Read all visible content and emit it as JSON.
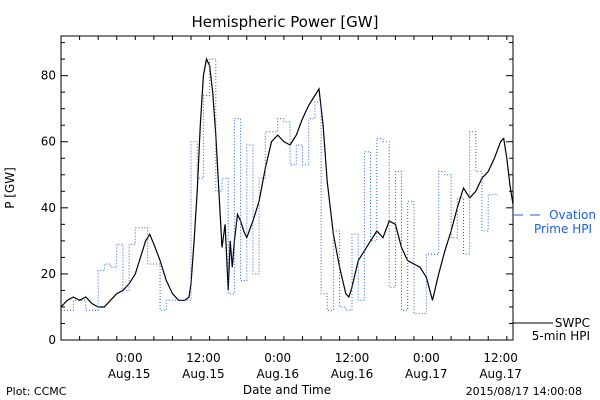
{
  "chart_data": {
    "type": "line",
    "title": "Hemispheric Power [GW]",
    "xlabel": "Date and Time",
    "ylabel": "P [GW]",
    "xlim": [
      "2015-08-14T13:00",
      "2015-08-17T14:00"
    ],
    "ylim": [
      0,
      92
    ],
    "grid": false,
    "legend_position": "right",
    "x_ticks": [
      {
        "x": "2015-08-15T00:00",
        "time": "0:00",
        "date": "Aug.15"
      },
      {
        "x": "2015-08-15T12:00",
        "time": "12:00",
        "date": "Aug.15"
      },
      {
        "x": "2015-08-16T00:00",
        "time": "0:00",
        "date": "Aug.16"
      },
      {
        "x": "2015-08-16T12:00",
        "time": "12:00",
        "date": "Aug.16"
      },
      {
        "x": "2015-08-17T00:00",
        "time": "0:00",
        "date": "Aug.17"
      },
      {
        "x": "2015-08-17T12:00",
        "time": "12:00",
        "date": "Aug.17"
      }
    ],
    "y_ticks": [
      0,
      20,
      40,
      60,
      80
    ],
    "series": [
      {
        "name": "SWPC 5-min HPI",
        "color": "#000000",
        "style": "solid",
        "points": [
          [
            "2015-08-14T13:00",
            10
          ],
          [
            "2015-08-14T14:00",
            12
          ],
          [
            "2015-08-14T15:00",
            13
          ],
          [
            "2015-08-14T16:00",
            12
          ],
          [
            "2015-08-14T17:00",
            13
          ],
          [
            "2015-08-14T18:00",
            11
          ],
          [
            "2015-08-14T19:00",
            10
          ],
          [
            "2015-08-14T20:00",
            10
          ],
          [
            "2015-08-14T21:00",
            12
          ],
          [
            "2015-08-14T22:00",
            14
          ],
          [
            "2015-08-14T23:00",
            15
          ],
          [
            "2015-08-15T00:00",
            17
          ],
          [
            "2015-08-15T01:00",
            20
          ],
          [
            "2015-08-15T02:00",
            26
          ],
          [
            "2015-08-15T02:40",
            30
          ],
          [
            "2015-08-15T03:20",
            32
          ],
          [
            "2015-08-15T04:00",
            29
          ],
          [
            "2015-08-15T05:00",
            24
          ],
          [
            "2015-08-15T06:00",
            18
          ],
          [
            "2015-08-15T07:00",
            14
          ],
          [
            "2015-08-15T08:00",
            12
          ],
          [
            "2015-08-15T09:00",
            12
          ],
          [
            "2015-08-15T09:40",
            13
          ],
          [
            "2015-08-15T10:00",
            17
          ],
          [
            "2015-08-15T10:30",
            30
          ],
          [
            "2015-08-15T11:00",
            45
          ],
          [
            "2015-08-15T11:30",
            65
          ],
          [
            "2015-08-15T12:00",
            80
          ],
          [
            "2015-08-15T12:30",
            85
          ],
          [
            "2015-08-15T13:00",
            83
          ],
          [
            "2015-08-15T13:30",
            75
          ],
          [
            "2015-08-15T14:00",
            62
          ],
          [
            "2015-08-15T14:30",
            45
          ],
          [
            "2015-08-15T15:00",
            28
          ],
          [
            "2015-08-15T15:30",
            35
          ],
          [
            "2015-08-15T16:00",
            15
          ],
          [
            "2015-08-15T16:20",
            30
          ],
          [
            "2015-08-15T16:40",
            22
          ],
          [
            "2015-08-15T17:00",
            30
          ],
          [
            "2015-08-15T17:30",
            38
          ],
          [
            "2015-08-15T18:00",
            36
          ],
          [
            "2015-08-15T18:30",
            33
          ],
          [
            "2015-08-15T19:00",
            31
          ],
          [
            "2015-08-15T20:00",
            36
          ],
          [
            "2015-08-15T21:00",
            42
          ],
          [
            "2015-08-15T22:00",
            52
          ],
          [
            "2015-08-15T23:00",
            60
          ],
          [
            "2015-08-16T00:00",
            62
          ],
          [
            "2015-08-16T01:00",
            60
          ],
          [
            "2015-08-16T02:00",
            59
          ],
          [
            "2015-08-16T03:00",
            62
          ],
          [
            "2015-08-16T04:00",
            67
          ],
          [
            "2015-08-16T05:00",
            71
          ],
          [
            "2015-08-16T06:00",
            74
          ],
          [
            "2015-08-16T06:40",
            76
          ],
          [
            "2015-08-16T07:20",
            65
          ],
          [
            "2015-08-16T08:00",
            48
          ],
          [
            "2015-08-16T09:00",
            32
          ],
          [
            "2015-08-16T10:00",
            22
          ],
          [
            "2015-08-16T11:00",
            14
          ],
          [
            "2015-08-16T11:30",
            13
          ],
          [
            "2015-08-16T12:00",
            16
          ],
          [
            "2015-08-16T13:00",
            24
          ],
          [
            "2015-08-16T14:00",
            27
          ],
          [
            "2015-08-16T15:00",
            30
          ],
          [
            "2015-08-16T16:00",
            33
          ],
          [
            "2015-08-16T17:00",
            31
          ],
          [
            "2015-08-16T18:00",
            36
          ],
          [
            "2015-08-16T19:00",
            35
          ],
          [
            "2015-08-16T20:00",
            28
          ],
          [
            "2015-08-16T21:00",
            24
          ],
          [
            "2015-08-16T22:00",
            23
          ],
          [
            "2015-08-16T23:00",
            22
          ],
          [
            "2015-08-17T00:00",
            19
          ],
          [
            "2015-08-17T01:00",
            12
          ],
          [
            "2015-08-17T02:00",
            20
          ],
          [
            "2015-08-17T03:00",
            27
          ],
          [
            "2015-08-17T04:00",
            33
          ],
          [
            "2015-08-17T05:00",
            40
          ],
          [
            "2015-08-17T06:00",
            46
          ],
          [
            "2015-08-17T07:00",
            43
          ],
          [
            "2015-08-17T08:00",
            45
          ],
          [
            "2015-08-17T09:00",
            49
          ],
          [
            "2015-08-17T10:00",
            51
          ],
          [
            "2015-08-17T11:00",
            55
          ],
          [
            "2015-08-17T12:00",
            60
          ],
          [
            "2015-08-17T12:30",
            61
          ],
          [
            "2015-08-17T13:00",
            55
          ],
          [
            "2015-08-17T13:30",
            47
          ],
          [
            "2015-08-17T14:00",
            41
          ]
        ]
      },
      {
        "name": "Ovation Prime HPI",
        "color": "#1f5fd8",
        "style": "dotted-step",
        "points": [
          [
            "2015-08-14T13:00",
            9
          ],
          [
            "2015-08-14T15:00",
            12
          ],
          [
            "2015-08-14T17:00",
            9
          ],
          [
            "2015-08-14T19:00",
            21
          ],
          [
            "2015-08-14T20:00",
            23
          ],
          [
            "2015-08-14T21:00",
            22
          ],
          [
            "2015-08-14T22:00",
            29
          ],
          [
            "2015-08-14T23:00",
            15
          ],
          [
            "2015-08-15T00:00",
            29
          ],
          [
            "2015-08-15T01:00",
            34
          ],
          [
            "2015-08-15T03:00",
            23
          ],
          [
            "2015-08-15T05:00",
            9
          ],
          [
            "2015-08-15T06:00",
            12
          ],
          [
            "2015-08-15T09:00",
            12
          ],
          [
            "2015-08-15T10:00",
            60
          ],
          [
            "2015-08-15T11:00",
            49
          ],
          [
            "2015-08-15T12:00",
            74
          ],
          [
            "2015-08-15T13:00",
            85
          ],
          [
            "2015-08-15T14:00",
            45
          ],
          [
            "2015-08-15T15:00",
            49
          ],
          [
            "2015-08-15T16:00",
            14
          ],
          [
            "2015-08-15T17:00",
            67
          ],
          [
            "2015-08-15T18:00",
            18
          ],
          [
            "2015-08-15T19:00",
            59
          ],
          [
            "2015-08-15T20:00",
            20
          ],
          [
            "2015-08-15T21:00",
            49
          ],
          [
            "2015-08-15T22:00",
            63
          ],
          [
            "2015-08-15T23:00",
            63
          ],
          [
            "2015-08-16T00:00",
            67
          ],
          [
            "2015-08-16T01:00",
            66
          ],
          [
            "2015-08-16T02:00",
            53
          ],
          [
            "2015-08-16T03:00",
            59
          ],
          [
            "2015-08-16T04:00",
            53
          ],
          [
            "2015-08-16T05:00",
            67
          ],
          [
            "2015-08-16T06:00",
            72
          ],
          [
            "2015-08-16T07:00",
            14
          ],
          [
            "2015-08-16T08:00",
            9
          ],
          [
            "2015-08-16T09:00",
            33
          ],
          [
            "2015-08-16T10:00",
            10
          ],
          [
            "2015-08-16T11:00",
            9
          ],
          [
            "2015-08-16T12:00",
            32
          ],
          [
            "2015-08-16T13:00",
            12
          ],
          [
            "2015-08-16T14:00",
            57
          ],
          [
            "2015-08-16T15:00",
            30
          ],
          [
            "2015-08-16T16:00",
            61
          ],
          [
            "2015-08-16T17:00",
            60
          ],
          [
            "2015-08-16T18:00",
            16
          ],
          [
            "2015-08-16T19:00",
            51
          ],
          [
            "2015-08-16T20:00",
            9
          ],
          [
            "2015-08-16T21:00",
            42
          ],
          [
            "2015-08-16T22:00",
            8
          ],
          [
            "2015-08-16T23:00",
            8
          ],
          [
            "2015-08-17T00:00",
            26
          ],
          [
            "2015-08-17T01:00",
            26
          ],
          [
            "2015-08-17T02:00",
            51
          ],
          [
            "2015-08-17T03:00",
            50
          ],
          [
            "2015-08-17T04:00",
            31
          ],
          [
            "2015-08-17T05:00",
            43
          ],
          [
            "2015-08-17T06:00",
            26
          ],
          [
            "2015-08-17T07:00",
            63
          ],
          [
            "2015-08-17T08:00",
            51
          ],
          [
            "2015-08-17T09:00",
            33
          ],
          [
            "2015-08-17T10:00",
            44
          ]
        ]
      }
    ]
  },
  "legend": {
    "swpc_line1": "SWPC",
    "swpc_line2": "5-min HPI",
    "ovation_line1": "Ovation",
    "ovation_line2": "Prime HPI"
  },
  "footer": {
    "plot_credit": "Plot: CCMC",
    "timestamp": "2015/08/17 14:00:08"
  }
}
